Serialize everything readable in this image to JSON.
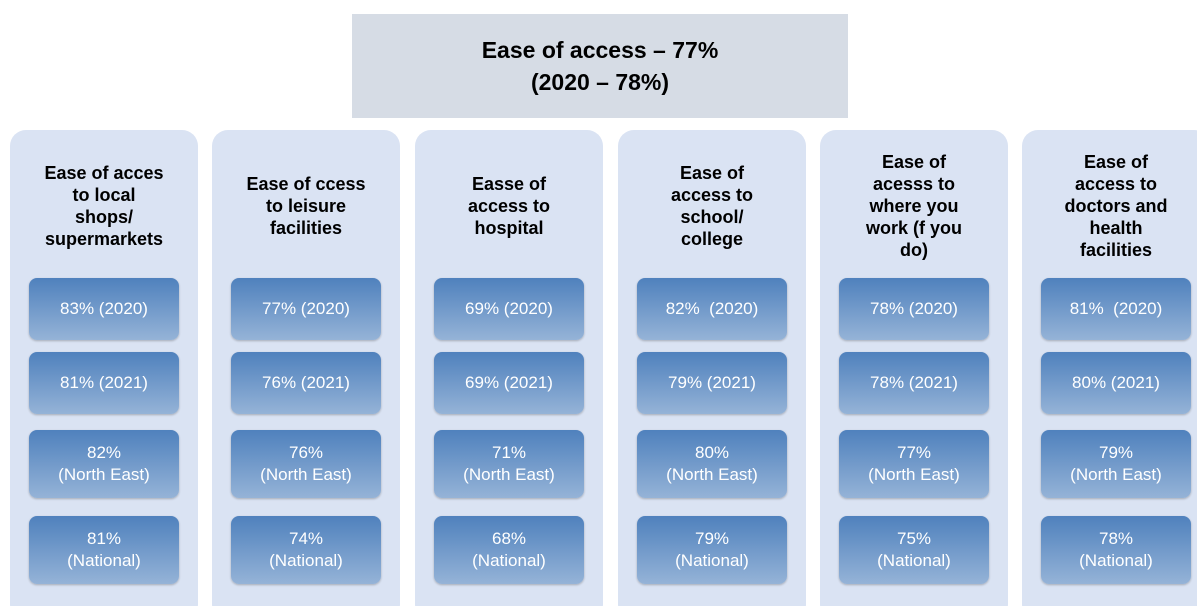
{
  "header": {
    "lines": [
      "Ease of access – 77%",
      "(2020 – 78%)"
    ]
  },
  "columns": [
    {
      "title": [
        "Ease of acces",
        "to local",
        "shops/",
        "supermarkets"
      ],
      "boxes": [
        [
          "83% (2020)"
        ],
        [
          "81% (2021)"
        ],
        [
          "82%",
          "(North East)"
        ],
        [
          "81%",
          "(National)"
        ]
      ]
    },
    {
      "title": [
        "Ease of ccess",
        "to leisure",
        "facilities"
      ],
      "boxes": [
        [
          "77% (2020)"
        ],
        [
          "76% (2021)"
        ],
        [
          "76%",
          "(North East)"
        ],
        [
          "74%",
          "(National)"
        ]
      ]
    },
    {
      "title": [
        "Easse of",
        "access to",
        "hospital"
      ],
      "boxes": [
        [
          "69% (2020)"
        ],
        [
          "69% (2021)"
        ],
        [
          "71%",
          "(North East)"
        ],
        [
          "68%",
          "(National)"
        ]
      ]
    },
    {
      "title": [
        "Ease of",
        "access to",
        "school/",
        "college"
      ],
      "boxes": [
        [
          "82%  (2020)"
        ],
        [
          "79% (2021)"
        ],
        [
          "80%",
          "(North East)"
        ],
        [
          "79%",
          "(National)"
        ]
      ]
    },
    {
      "title": [
        "Ease of",
        "acesss to",
        "where you",
        "work (f you",
        "do)"
      ],
      "boxes": [
        [
          "78% (2020)"
        ],
        [
          "78% (2021)"
        ],
        [
          "77%",
          "(North East)"
        ],
        [
          "75%",
          "(National)"
        ]
      ]
    },
    {
      "title": [
        "Ease of",
        "access to",
        "doctors and",
        "health",
        "facilities"
      ],
      "boxes": [
        [
          "81%  (2020)"
        ],
        [
          "80% (2021)"
        ],
        [
          "79%",
          "(North East)"
        ],
        [
          "78%",
          "(National)"
        ]
      ]
    }
  ]
}
